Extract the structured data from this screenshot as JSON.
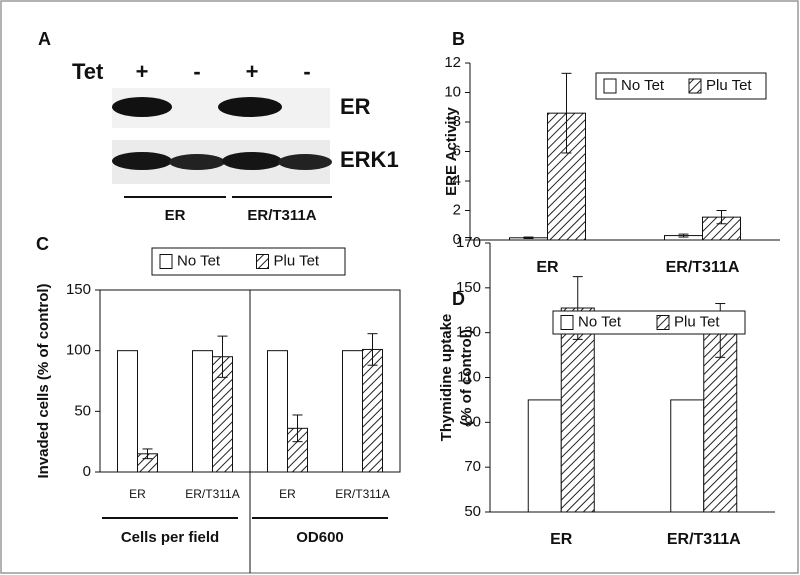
{
  "blot": {
    "panel": "A",
    "treatment": "Tet",
    "lanes": [
      "+",
      "-",
      "+",
      "-"
    ],
    "bands": [
      "ER",
      "ERK1"
    ],
    "groups": [
      "ER",
      "ER/T311A"
    ]
  },
  "chart_data": [
    {
      "type": "bar",
      "panel": "B",
      "ylabel": "ERE Activity",
      "categories": [
        "ER",
        "ER/T311A"
      ],
      "series": [
        {
          "name": "No Tet",
          "color": "#ffffff",
          "hatch": false,
          "values": [
            0.15,
            0.3
          ],
          "errors": [
            0.05,
            0.1
          ]
        },
        {
          "name": "Plu Tet",
          "color": "#ffffff",
          "hatch": true,
          "values": [
            8.6,
            1.55
          ],
          "errors": [
            2.7,
            0.45
          ]
        }
      ],
      "ylim": [
        0,
        12
      ],
      "yticks": [
        0,
        2,
        4,
        6,
        8,
        10,
        12
      ],
      "legend": "upper right"
    },
    {
      "type": "bar",
      "panel": "C",
      "ylabel": "Invaded cells (% of control)",
      "categories": [
        "ER",
        "ER/T311A",
        "ER",
        "ER/T311A"
      ],
      "groups": [
        "Cells per field",
        "OD600"
      ],
      "series": [
        {
          "name": "No Tet",
          "color": "#ffffff",
          "hatch": false,
          "values": [
            100,
            100,
            100,
            100
          ]
        },
        {
          "name": "Plu Tet",
          "color": "#ffffff",
          "hatch": true,
          "values": [
            15,
            95,
            36,
            101
          ],
          "errors": [
            4,
            17,
            11,
            13
          ]
        }
      ],
      "ylim": [
        0,
        150
      ],
      "yticks": [
        0,
        50,
        100,
        150
      ],
      "legend": "top"
    },
    {
      "type": "bar",
      "panel": "D",
      "ylabel": [
        "Thymidine uptake",
        "(% of control)"
      ],
      "categories": [
        "ER",
        "ER/T311A"
      ],
      "series": [
        {
          "name": "No Tet",
          "color": "#ffffff",
          "hatch": false,
          "values": [
            100,
            100
          ]
        },
        {
          "name": "Plu Tet",
          "color": "#ffffff",
          "hatch": true,
          "values": [
            141,
            131
          ],
          "errors": [
            14,
            12
          ]
        }
      ],
      "ylim": [
        50,
        170
      ],
      "yticks": [
        50,
        70,
        90,
        110,
        130,
        150,
        170
      ],
      "legend": "upper right"
    }
  ]
}
